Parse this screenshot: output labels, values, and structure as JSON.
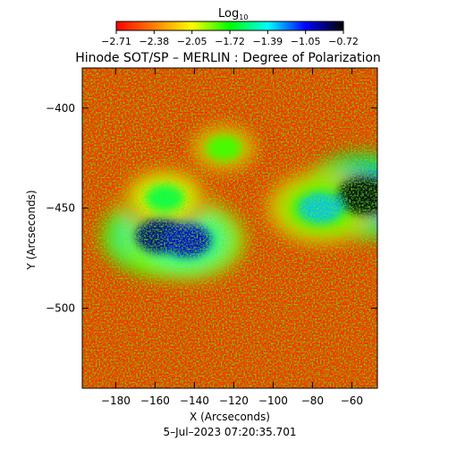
{
  "colorbar": {
    "title_main": "Log",
    "title_sub": "10",
    "ticks": [
      "−2.71",
      "−2.38",
      "−2.05",
      "−1.72",
      "−1.39",
      "−1.05",
      "−0.72"
    ],
    "colors": [
      "#ff0000",
      "#ff8000",
      "#ffff00",
      "#00ff00",
      "#00ffff",
      "#0000ff",
      "#000000"
    ]
  },
  "chart_data": {
    "type": "heatmap",
    "title": "Hinode SOT/SP – MERLIN : Degree of Polarization",
    "xlabel": "X (Arcseconds)",
    "ylabel": "Y (Arcseconds)",
    "xlim": [
      -197,
      -47
    ],
    "ylim": [
      -540,
      -380
    ],
    "x_ticks": [
      -180,
      -160,
      -140,
      -120,
      -100,
      -80,
      -60
    ],
    "x_tick_labels": [
      "−180",
      "−160",
      "−140",
      "−120",
      "−100",
      "−80",
      "−60"
    ],
    "y_ticks": [
      -400,
      -450,
      -500
    ],
    "y_tick_labels": [
      "−400",
      "−450",
      "−500"
    ],
    "color_scale": "log10 degree of polarization",
    "colorbar_range": [
      -2.71,
      -0.72
    ],
    "features": [
      {
        "kind": "polarized-region",
        "x": -157,
        "y": -464,
        "value": -0.9
      },
      {
        "kind": "polarized-region",
        "x": -144,
        "y": -466,
        "value": -1.0
      },
      {
        "kind": "polarized-region",
        "x": -54,
        "y": -444,
        "value": -0.75
      },
      {
        "kind": "polarized-region",
        "x": -76,
        "y": -450,
        "value": -1.3
      },
      {
        "kind": "polarized-region",
        "x": -155,
        "y": -445,
        "value": -1.6
      },
      {
        "kind": "polarized-region",
        "x": -125,
        "y": -420,
        "value": -1.8
      }
    ]
  },
  "timestamp": "5–Jul–2023 07:20:35.701"
}
